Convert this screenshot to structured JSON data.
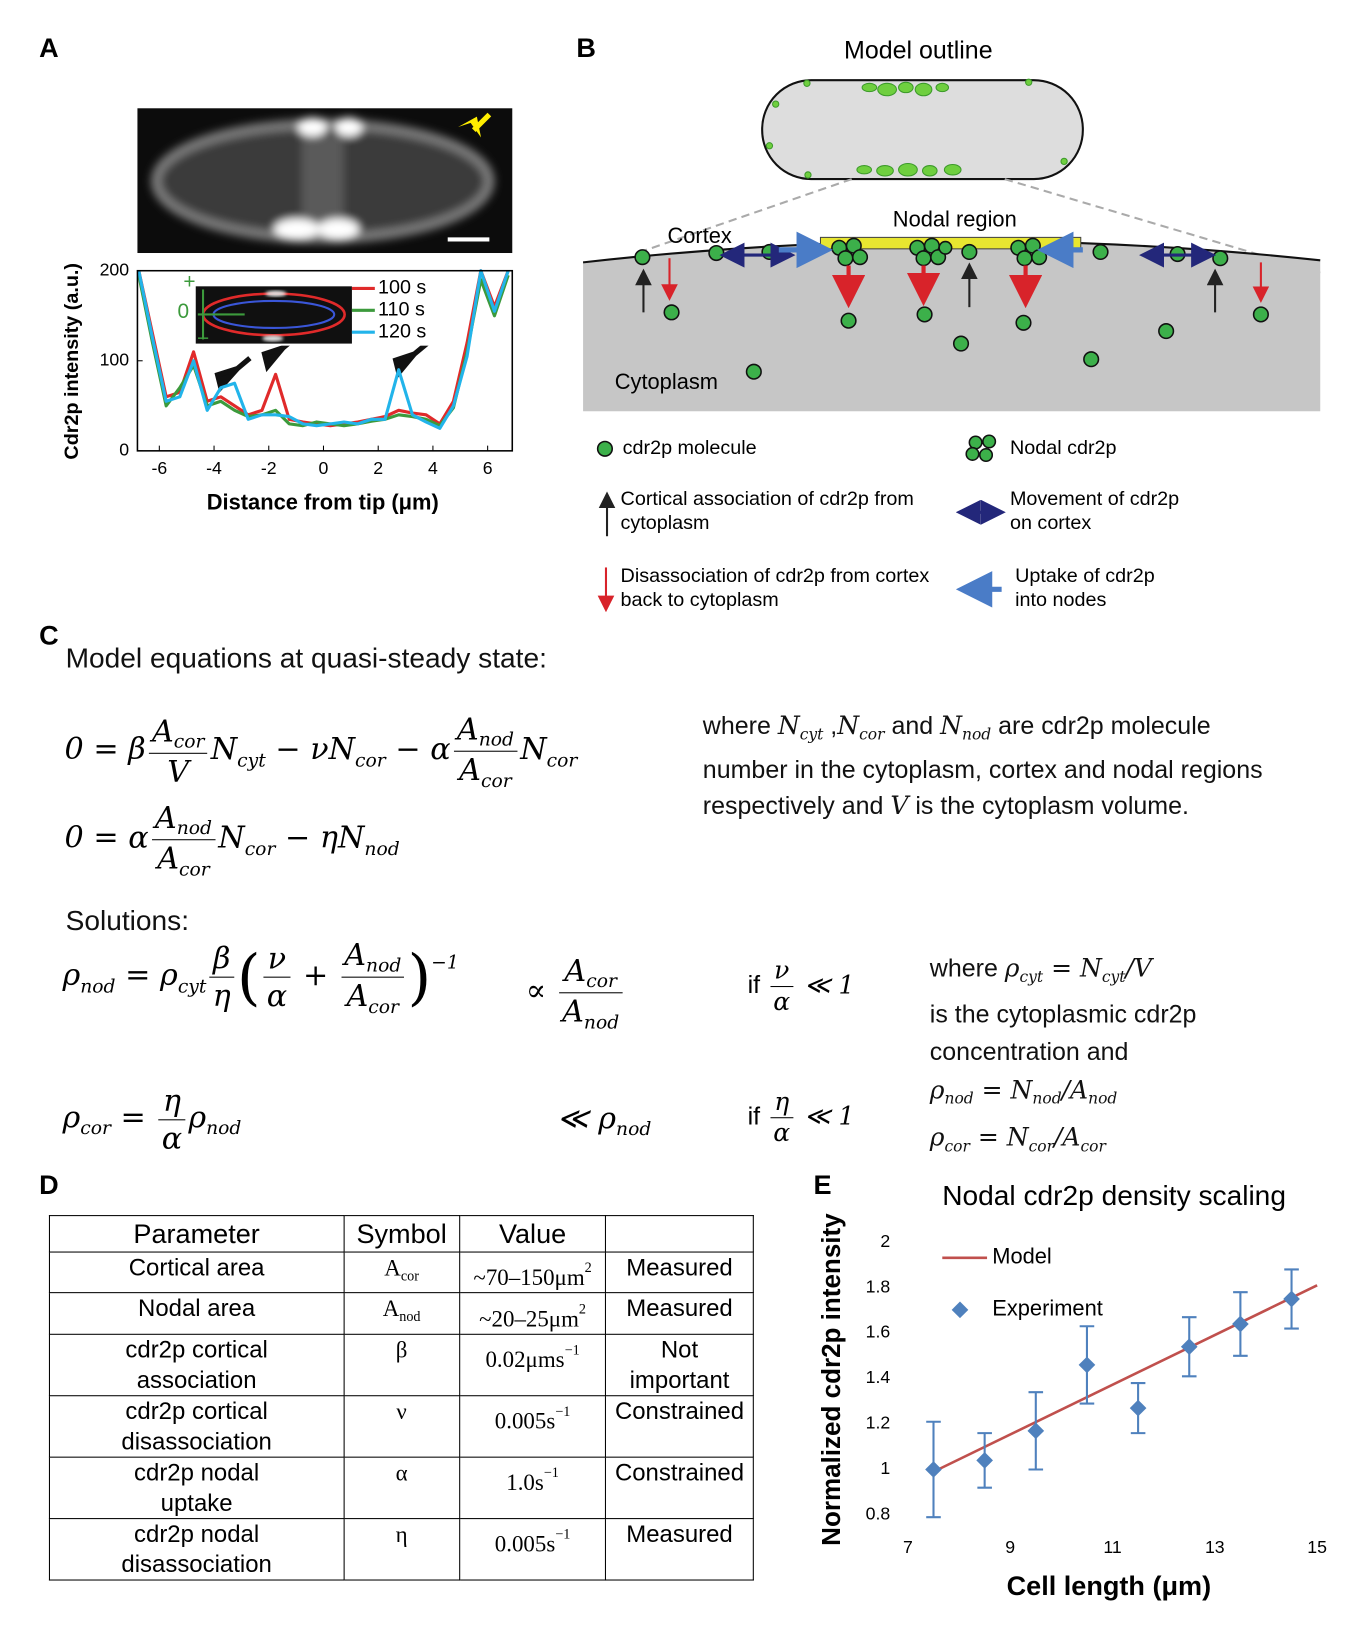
{
  "panel_labels": [
    "A",
    "B",
    "C",
    "D",
    "E"
  ],
  "chart_data": [
    {
      "type": "line",
      "xlabel": "Distance from tip (μm)",
      "ylabel": "Cdr2p intensity (a.u.)",
      "xlim": [
        -6.8,
        6.9
      ],
      "ylim": [
        0,
        200
      ],
      "xticks": [
        -6,
        -4,
        -2,
        0,
        2,
        4,
        6
      ],
      "yticks": [
        0,
        100,
        200
      ],
      "x": [
        -6.75,
        -6.25,
        -5.75,
        -5.25,
        -4.75,
        -4.25,
        -3.75,
        -3.25,
        -2.75,
        -2.25,
        -1.75,
        -1.25,
        -0.75,
        -0.25,
        0.25,
        0.75,
        1.25,
        1.75,
        2.25,
        2.75,
        3.25,
        3.75,
        4.25,
        4.75,
        5.25,
        5.75,
        6.25,
        6.75
      ],
      "series": [
        {
          "name": "100 s",
          "color": "#e02a2a",
          "values": [
            200,
            130,
            60,
            65,
            110,
            55,
            60,
            50,
            40,
            45,
            85,
            35,
            32,
            30,
            28,
            30,
            32,
            35,
            38,
            45,
            42,
            40,
            30,
            55,
            120,
            200,
            160,
            200
          ]
        },
        {
          "name": "110 s",
          "color": "#3c9a3c",
          "values": [
            195,
            120,
            50,
            70,
            95,
            50,
            55,
            45,
            38,
            40,
            45,
            30,
            28,
            32,
            30,
            28,
            30,
            33,
            35,
            40,
            38,
            35,
            28,
            48,
            110,
            190,
            150,
            195
          ]
        },
        {
          "name": "120 s",
          "color": "#22b4ea",
          "values": [
            200,
            125,
            55,
            60,
            100,
            45,
            70,
            75,
            35,
            40,
            40,
            38,
            30,
            28,
            30,
            32,
            30,
            35,
            35,
            90,
            40,
            32,
            25,
            50,
            105,
            200,
            155,
            200
          ]
        }
      ],
      "annotations": [
        "+",
        "0",
        "−"
      ]
    },
    {
      "type": "scatter",
      "title": "Nodal cdr2p density scaling",
      "xlabel": "Cell length (μm)",
      "ylabel": "Normalized cdr2p intensity",
      "xlim": [
        7,
        15
      ],
      "ylim": [
        0.8,
        2
      ],
      "xticks": [
        7,
        9,
        11,
        13,
        15
      ],
      "yticks": [
        0.8,
        1,
        1.2,
        1.4,
        1.6,
        1.8,
        2
      ],
      "legend": "upper left",
      "series": [
        {
          "name": "Model",
          "type": "line",
          "color": "#c0504d",
          "x": [
            7.5,
            15
          ],
          "values": [
            0.99,
            1.81
          ]
        },
        {
          "name": "Experiment",
          "type": "scatter",
          "color": "#4f81bd",
          "x": [
            7.5,
            8.5,
            9.5,
            10.5,
            11.5,
            12.5,
            13.5,
            14.5
          ],
          "values": [
            1.0,
            1.04,
            1.17,
            1.46,
            1.27,
            1.54,
            1.64,
            1.75
          ],
          "errors": [
            0.21,
            0.12,
            0.17,
            0.17,
            0.11,
            0.13,
            0.14,
            0.13
          ]
        }
      ]
    }
  ],
  "panel_b": {
    "title": "Model outline",
    "cortex": "Cortex",
    "nodal_region": "Nodal region",
    "cytoplasm": "Cytoplasm",
    "legend": [
      [
        "cdr2p molecule"
      ],
      [
        "Nodal cdr2p"
      ],
      [
        "Cortical association of cdr2p from",
        "cytoplasm"
      ],
      [
        "Movement of cdr2p",
        "on cortex"
      ],
      [
        "Disassociation of cdr2p from cortex",
        "back to cytoplasm"
      ],
      [
        "Uptake of cdr2p",
        "into nodes"
      ]
    ]
  },
  "panel_c": {
    "title": "Model equations at quasi-steady state:",
    "equations": [
      [
        "0 = ",
        "β",
        {
          "n": [
            {
              "b": "A",
              "s": "cor"
            }
          ],
          "d": [
            "V"
          ]
        },
        {
          "b": "N",
          "s": "cyt"
        },
        " − ",
        "ν",
        {
          "b": "N",
          "s": "cor"
        },
        " − ",
        "α",
        {
          "n": [
            {
              "b": "A",
              "s": "nod"
            }
          ],
          "d": [
            {
              "b": "A",
              "s": "cor"
            }
          ]
        },
        {
          "b": "N",
          "s": "cor"
        }
      ],
      [
        "0 = ",
        "α",
        {
          "n": [
            {
              "b": "A",
              "s": "nod"
            }
          ],
          "d": [
            {
              "b": "A",
              "s": "cor"
            }
          ]
        },
        {
          "b": "N",
          "s": "cor"
        },
        " − ",
        "η",
        {
          "b": "N",
          "s": "nod"
        }
      ]
    ],
    "where": [
      "where ",
      {
        "m": {
          "b": "N",
          "s": "cyt"
        }
      },
      " ,",
      {
        "m": {
          "b": "N",
          "s": "cor"
        }
      },
      " and ",
      {
        "m": {
          "b": "N",
          "s": "nod"
        }
      },
      " are cdr2p molecule number in the cytoplasm, cortex and nodal regions respectively and ",
      {
        "m": "V"
      },
      " is the cytoplasm volume."
    ],
    "solutions_label": "Solutions:",
    "solutions": [
      {
        "lhs": [
          {
            "b": "ρ",
            "s": "nod"
          },
          " = ",
          {
            "b": "ρ",
            "s": "cyt"
          },
          {
            "n": [
              "β"
            ],
            "d": [
              "η"
            ]
          },
          {
            "b": [
              "(",
              {
                "n": [
                  "ν"
                ],
                "d": [
                  "α"
                ]
              },
              " + ",
              {
                "n": [
                  {
                    "b": "A",
                    "s": "nod"
                  }
                ],
                "d": [
                  {
                    "b": "A",
                    "s": "cor"
                  }
                ]
              },
              ")"
            ],
            "p": "−1"
          }
        ],
        "mid": [
          "∝ ",
          {
            "n": [
              {
                "b": "A",
                "s": "cor"
              }
            ],
            "d": [
              {
                "b": "A",
                "s": "nod"
              }
            ]
          }
        ],
        "cond": [
          "if ",
          {
            "m": [
              {
                "n": [
                  "ν"
                ],
                "d": [
                  "α"
                ]
              },
              " ≪ 1"
            ]
          }
        ]
      },
      {
        "lhs": [
          {
            "b": "ρ",
            "s": "cor"
          },
          " = ",
          {
            "n": [
              "η"
            ],
            "d": [
              "α"
            ]
          },
          {
            "b": "ρ",
            "s": "nod"
          }
        ],
        "mid": [
          "≪ ",
          {
            "b": "ρ",
            "s": "nod"
          }
        ],
        "cond": [
          "if ",
          {
            "m": [
              {
                "n": [
                  "η"
                ],
                "d": [
                  "α"
                ]
              },
              " ≪ 1"
            ]
          }
        ]
      }
    ],
    "note": [
      [
        "where ",
        {
          "m": [
            {
              "b": "ρ",
              "s": "cyt"
            },
            " = ",
            {
              "b": "N",
              "s": "cyt"
            },
            "/V"
          ]
        }
      ],
      "is the cytoplasmic cdr2p",
      "concentration and",
      {
        "m": [
          {
            "b": "ρ",
            "s": "nod"
          },
          " = ",
          {
            "b": "N",
            "s": "nod"
          },
          "/",
          {
            "b": "A",
            "s": "nod"
          }
        ]
      },
      {
        "m": [
          {
            "b": "ρ",
            "s": "cor"
          },
          " = ",
          {
            "b": "N",
            "s": "cor"
          },
          "/",
          {
            "b": "A",
            "s": "cor"
          }
        ]
      }
    ]
  },
  "table": {
    "header": [
      "Parameter",
      "Symbol",
      "Value"
    ],
    "rows": [
      [
        [
          "Cortical area"
        ],
        {
          "b": "A",
          "s": "cor"
        },
        {
          "b": "~70–150μm",
          "p": "2"
        },
        [
          "Measured"
        ]
      ],
      [
        [
          "Nodal area"
        ],
        {
          "b": "A",
          "s": "nod"
        },
        {
          "b": "~20–25μm",
          "p": "2"
        },
        [
          "Measured"
        ]
      ],
      [
        [
          "cdr2p cortical",
          "association"
        ],
        "β",
        {
          "b": "0.02μms",
          "p": "−1"
        },
        [
          "Not",
          "important"
        ]
      ],
      [
        [
          "cdr2p cortical",
          "disassociation"
        ],
        "ν",
        {
          "b": "0.005s",
          "p": "−1"
        },
        [
          "Constrained"
        ]
      ],
      [
        [
          "cdr2p nodal",
          "uptake"
        ],
        "α",
        {
          "b": "1.0s",
          "p": "−1"
        },
        [
          "Constrained"
        ]
      ],
      [
        [
          "cdr2p nodal",
          "disassociation"
        ],
        "η",
        {
          "b": "0.005s",
          "p": "−1"
        },
        [
          "Measured"
        ]
      ]
    ]
  }
}
